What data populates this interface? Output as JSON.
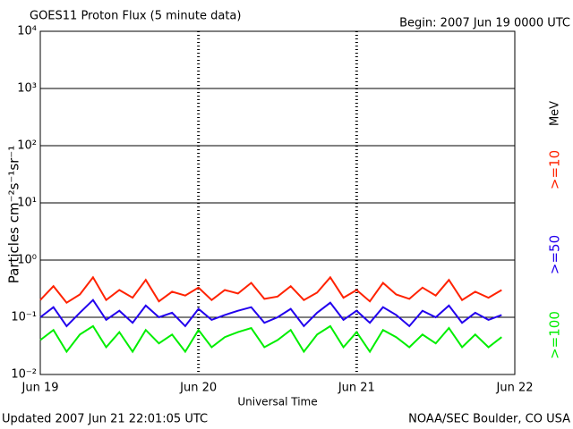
{
  "chart_data": {
    "type": "line",
    "title": "GOES11 Proton Flux (5 minute data)",
    "subtitle": "Begin: 2007 Jun 19 0000 UTC",
    "y_label": "Particles cm⁻²s⁻¹sr⁻¹",
    "x_label": "Universal Time",
    "legend_unit": "MeV",
    "footer_left": "Updated 2007 Jun 21 22:01:05 UTC",
    "footer_right": "NOAA/SEC Boulder, CO USA",
    "log_y": true,
    "grid": true,
    "legend": "right",
    "x": [
      0,
      2,
      4,
      6,
      8,
      10,
      12,
      14,
      16,
      18,
      20,
      22,
      24,
      26,
      28,
      30,
      32,
      34,
      36,
      38,
      40,
      42,
      44,
      46,
      48,
      50,
      52,
      54,
      56,
      58,
      60,
      62,
      64,
      66,
      68,
      70
    ],
    "xlim": [
      0,
      72
    ],
    "xticks": [
      {
        "value": 0,
        "label": "Jun 19"
      },
      {
        "value": 24,
        "label": "Jun 20"
      },
      {
        "value": 48,
        "label": "Jun 21"
      },
      {
        "value": 72,
        "label": "Jun 22"
      }
    ],
    "ylim": [
      0.01,
      10000
    ],
    "yticks": [
      {
        "value": 0.01,
        "label": "10⁻²"
      },
      {
        "value": 0.1,
        "label": "10⁻¹"
      },
      {
        "value": 1,
        "label": "10⁰"
      },
      {
        "value": 10,
        "label": "10¹"
      },
      {
        "value": 100,
        "label": "10²"
      },
      {
        "value": 1000,
        "label": "10³"
      },
      {
        "value": 10000,
        "label": "10⁴"
      }
    ],
    "series": [
      {
        "name": ">=10",
        "color": "#ff2200",
        "values": [
          0.2,
          0.35,
          0.18,
          0.25,
          0.5,
          0.2,
          0.3,
          0.22,
          0.45,
          0.19,
          0.28,
          0.24,
          0.33,
          0.2,
          0.3,
          0.26,
          0.4,
          0.21,
          0.23,
          0.35,
          0.2,
          0.27,
          0.5,
          0.22,
          0.3,
          0.19,
          0.4,
          0.25,
          0.21,
          0.33,
          0.24,
          0.45,
          0.2,
          0.28,
          0.22,
          0.3
        ]
      },
      {
        "name": ">=50",
        "color": "#2200ee",
        "values": [
          0.1,
          0.15,
          0.07,
          0.12,
          0.2,
          0.09,
          0.13,
          0.08,
          0.16,
          0.1,
          0.12,
          0.07,
          0.14,
          0.09,
          0.11,
          0.13,
          0.15,
          0.08,
          0.1,
          0.14,
          0.07,
          0.12,
          0.18,
          0.09,
          0.13,
          0.08,
          0.15,
          0.11,
          0.07,
          0.13,
          0.1,
          0.16,
          0.08,
          0.12,
          0.09,
          0.11
        ]
      },
      {
        "name": ">=100",
        "color": "#00ee00",
        "values": [
          0.04,
          0.06,
          0.025,
          0.05,
          0.07,
          0.03,
          0.055,
          0.025,
          0.06,
          0.035,
          0.05,
          0.025,
          0.06,
          0.03,
          0.045,
          0.055,
          0.065,
          0.03,
          0.04,
          0.06,
          0.025,
          0.05,
          0.07,
          0.03,
          0.055,
          0.025,
          0.06,
          0.045,
          0.03,
          0.05,
          0.035,
          0.065,
          0.03,
          0.05,
          0.03,
          0.045
        ]
      }
    ]
  }
}
